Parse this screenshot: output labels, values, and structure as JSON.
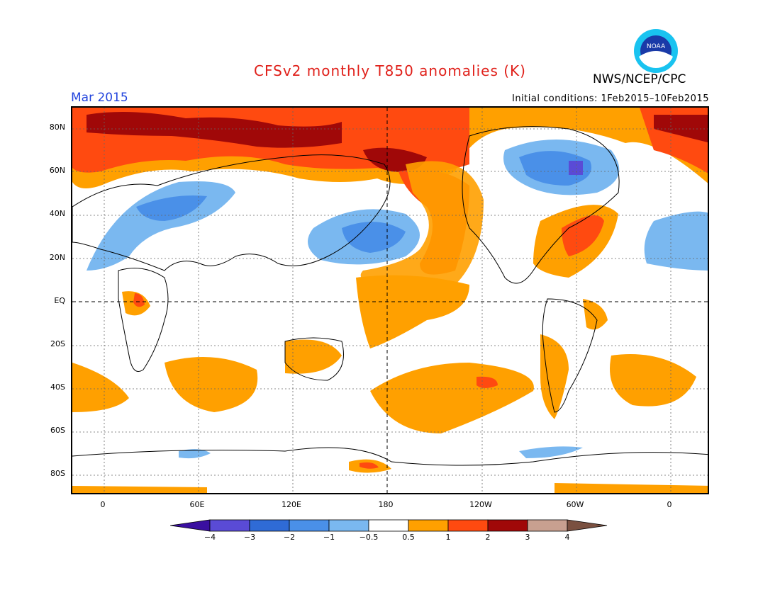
{
  "header": {
    "title": "CFSv2 monthly T850 anomalies (K)",
    "agency": "NWS/NCEP/CPC",
    "month": "Mar 2015",
    "initial_conditions": "Initial conditions: 1Feb2015–10Feb2015",
    "logo_text": "NOAA"
  },
  "map": {
    "lat_labels": [
      "80N",
      "60N",
      "40N",
      "20N",
      "EQ",
      "20S",
      "40S",
      "60S",
      "80S"
    ],
    "lon_labels": [
      "0",
      "60E",
      "120E",
      "180",
      "120W",
      "60W",
      "0"
    ]
  },
  "colorbar": {
    "labels": [
      "−4",
      "−3",
      "−2",
      "−1",
      "−0.5",
      "0.5",
      "1",
      "2",
      "3",
      "4"
    ],
    "colors": [
      "#3a0fa0",
      "#5a4bd6",
      "#2f6bd6",
      "#4a90e8",
      "#7ab8f0",
      "#ffffff",
      "#ffa000",
      "#ff4a10",
      "#a00808",
      "#c8a090",
      "#7a5040"
    ]
  }
}
